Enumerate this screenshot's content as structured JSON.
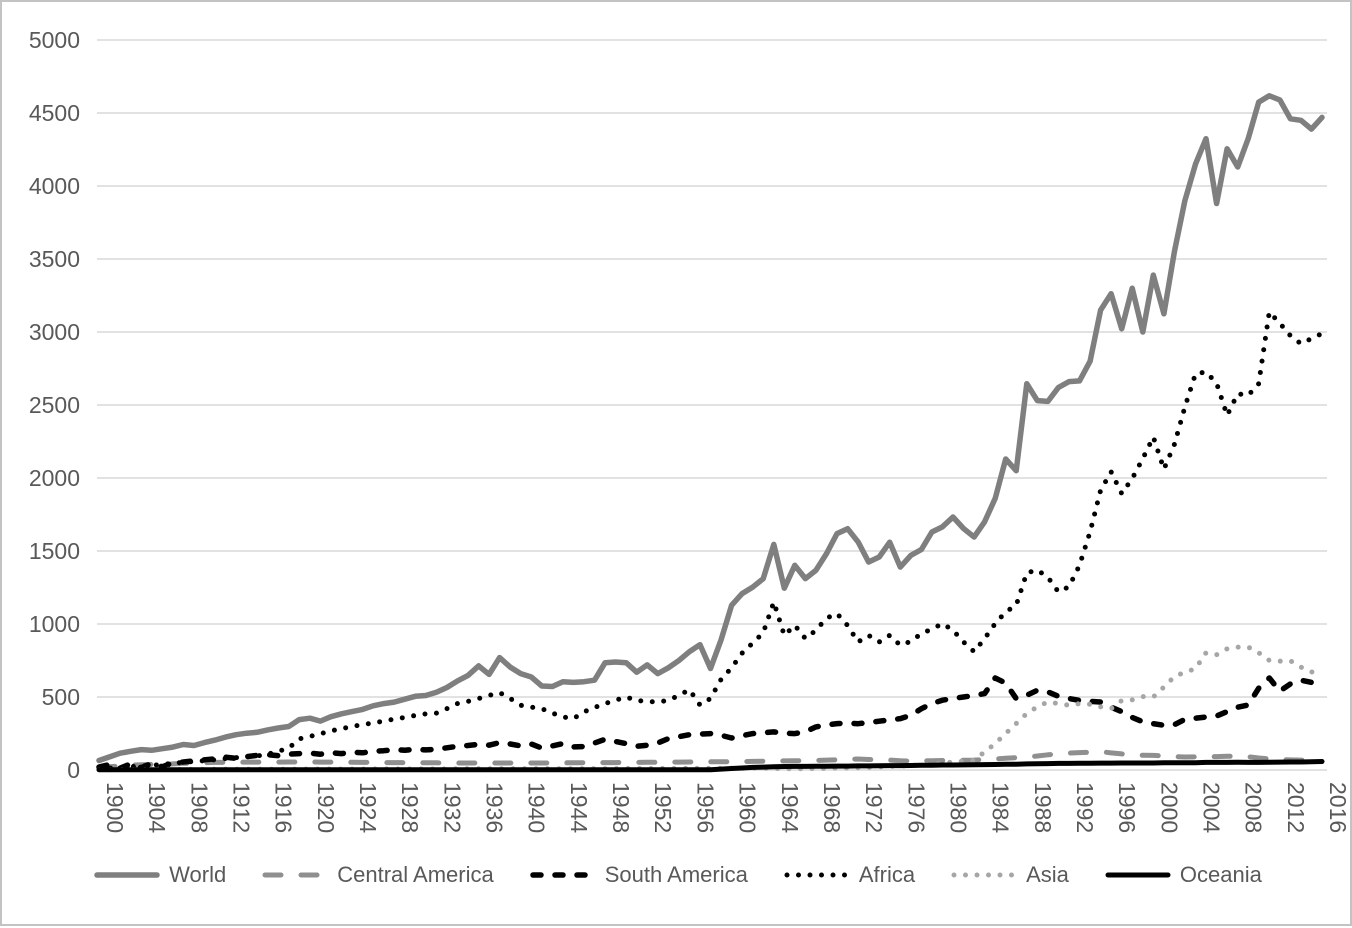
{
  "style": {
    "background": "#ffffff",
    "frame_border_color": "#c3c3c3",
    "gridline_color": "#d9d9d9",
    "axis_label_color": "#595959"
  },
  "chart_data": {
    "type": "line",
    "title": "",
    "xlabel": "",
    "ylabel": "",
    "ylim": [
      0,
      5000
    ],
    "grid": true,
    "legend_position": "bottom",
    "y_ticks": [
      0,
      500,
      1000,
      1500,
      2000,
      2500,
      3000,
      3500,
      4000,
      4500,
      5000
    ],
    "x_tick_labels": [
      "1900",
      "1904",
      "1908",
      "1912",
      "1916",
      "1920",
      "1924",
      "1928",
      "1932",
      "1936",
      "1940",
      "1944",
      "1948",
      "1952",
      "1956",
      "1960",
      "1964",
      "1968",
      "1972",
      "1976",
      "1980",
      "1984",
      "1988",
      "1992",
      "1996",
      "2000",
      "2004",
      "2008",
      "2012",
      "2016"
    ],
    "x_years": {
      "start": 1900,
      "end": 2016,
      "step": 1
    },
    "series": [
      {
        "name": "World",
        "color": "#7f7f7f",
        "dash": "solid",
        "width": 5.5,
        "values": [
          65,
          90,
          115,
          128,
          140,
          135,
          146,
          157,
          175,
          168,
          188,
          205,
          225,
          242,
          252,
          258,
          275,
          288,
          298,
          345,
          355,
          335,
          365,
          385,
          400,
          415,
          440,
          455,
          465,
          485,
          505,
          510,
          532,
          565,
          610,
          648,
          713,
          655,
          770,
          705,
          660,
          637,
          575,
          572,
          605,
          600,
          605,
          615,
          735,
          740,
          735,
          670,
          720,
          660,
          700,
          750,
          810,
          858,
          695,
          890,
          1128,
          1208,
          1253,
          1310,
          1545,
          1245,
          1402,
          1311,
          1368,
          1482,
          1619,
          1653,
          1562,
          1425,
          1459,
          1560,
          1390,
          1470,
          1510,
          1630,
          1665,
          1733,
          1654,
          1596,
          1700,
          1860,
          2130,
          2050,
          2646,
          2530,
          2525,
          2620,
          2660,
          2665,
          2800,
          3150,
          3262,
          3022,
          3300,
          3000,
          3390,
          3125,
          3550,
          3900,
          4150,
          4324,
          3880,
          4255,
          4130,
          4325,
          4575,
          4618,
          4590,
          4460,
          4450,
          4390,
          4470
        ]
      },
      {
        "name": "Central America",
        "color": "#8f8f8f",
        "dash": "long-dash",
        "width": 5,
        "values": [
          15,
          22,
          28,
          32,
          36,
          38,
          40,
          42,
          46,
          48,
          50,
          52,
          53,
          53,
          54,
          54,
          54,
          54,
          55,
          55,
          55,
          54,
          54,
          53,
          53,
          52,
          52,
          51,
          51,
          50,
          50,
          49,
          49,
          48,
          48,
          48,
          48,
          48,
          48,
          48,
          48,
          48,
          48,
          48,
          49,
          49,
          50,
          50,
          51,
          51,
          52,
          52,
          53,
          53,
          54,
          54,
          55,
          55,
          56,
          56,
          57,
          58,
          59,
          60,
          61,
          62,
          63,
          64,
          66,
          68,
          70,
          73,
          75,
          72,
          70,
          68,
          63,
          61,
          62,
          64,
          65,
          66,
          67,
          68,
          72,
          76,
          80,
          84,
          88,
          96,
          104,
          110,
          116,
          119,
          121,
          126,
          117,
          110,
          104,
          101,
          100,
          96,
          91,
          89,
          90,
          90,
          92,
          94,
          95,
          91,
          82,
          76,
          71,
          69,
          68,
          67,
          66
        ]
      },
      {
        "name": "South America",
        "color": "#000000",
        "dash": "dash",
        "width": 5.5,
        "values": [
          20,
          38,
          12,
          42,
          16,
          46,
          22,
          50,
          55,
          62,
          70,
          76,
          88,
          80,
          92,
          100,
          105,
          98,
          108,
          112,
          115,
          108,
          118,
          112,
          122,
          118,
          128,
          132,
          140,
          135,
          142,
          138,
          142,
          152,
          162,
          168,
          176,
          170,
          188,
          178,
          165,
          178,
          150,
          165,
          181,
          158,
          160,
          185,
          210,
          195,
          181,
          162,
          169,
          185,
          215,
          228,
          242,
          246,
          249,
          238,
          219,
          235,
          249,
          255,
          261,
          252,
          249,
          262,
          295,
          308,
          318,
          320,
          317,
          325,
          334,
          343,
          352,
          375,
          420,
          455,
          478,
          490,
          500,
          510,
          523,
          630,
          595,
          489,
          512,
          546,
          535,
          505,
          490,
          477,
          470,
          466,
          430,
          400,
          360,
          330,
          317,
          306,
          310,
          347,
          355,
          363,
          370,
          400,
          430,
          445,
          560,
          630,
          540,
          590,
          615,
          600,
          620
        ]
      },
      {
        "name": "Africa",
        "color": "#000000",
        "dash": "dot",
        "width": 5,
        "values": [
          8,
          12,
          18,
          22,
          28,
          32,
          38,
          45,
          52,
          58,
          64,
          70,
          78,
          84,
          90,
          96,
          108,
          128,
          150,
          213,
          230,
          248,
          268,
          283,
          298,
          310,
          322,
          335,
          348,
          360,
          373,
          384,
          390,
          420,
          455,
          470,
          489,
          510,
          530,
          490,
          443,
          430,
          420,
          390,
          363,
          352,
          398,
          428,
          455,
          478,
          500,
          475,
          470,
          465,
          477,
          510,
          550,
          445,
          490,
          620,
          700,
          800,
          870,
          940,
          1151,
          922,
          991,
          900,
          957,
          1040,
          1071,
          990,
          877,
          922,
          877,
          922,
          855,
          880,
          935,
          965,
          1003,
          957,
          877,
          810,
          900,
          1003,
          1083,
          1128,
          1350,
          1370,
          1320,
          1220,
          1255,
          1402,
          1631,
          1916,
          2042,
          1893,
          1996,
          2133,
          2281,
          2060,
          2230,
          2486,
          2714,
          2726,
          2650,
          2429,
          2577,
          2566,
          2646,
          3137,
          3060,
          2975,
          2920,
          2955,
          2990
        ]
      },
      {
        "name": "Asia",
        "color": "#a6a6a6",
        "dash": "dot",
        "width": 5,
        "values": [
          2,
          2,
          3,
          3,
          3,
          3,
          4,
          4,
          4,
          4,
          5,
          5,
          5,
          5,
          5,
          5,
          5,
          5,
          5,
          6,
          6,
          6,
          6,
          6,
          6,
          6,
          7,
          7,
          7,
          7,
          7,
          7,
          7,
          7,
          8,
          8,
          8,
          8,
          8,
          8,
          8,
          8,
          8,
          8,
          8,
          8,
          9,
          9,
          9,
          9,
          10,
          10,
          10,
          10,
          10,
          10,
          11,
          11,
          11,
          11,
          12,
          12,
          13,
          12,
          10,
          9,
          8,
          9,
          10,
          11,
          13,
          14,
          16,
          18,
          21,
          24,
          27,
          30,
          35,
          41,
          47,
          55,
          60,
          67,
          124,
          181,
          250,
          318,
          387,
          432,
          466,
          455,
          443,
          455,
          450,
          432,
          420,
          475,
          480,
          503,
          500,
          568,
          640,
          670,
          694,
          803,
          790,
          830,
          842,
          842,
          803,
          751,
          745,
          748,
          705,
          671,
          672
        ]
      },
      {
        "name": "Oceania",
        "color": "#000000",
        "dash": "solid",
        "width": 5,
        "values": [
          2,
          2,
          2,
          2,
          2,
          2,
          2,
          2,
          2,
          2,
          2,
          2,
          2,
          2,
          2,
          2,
          2,
          2,
          2,
          2,
          2,
          2,
          2,
          2,
          2,
          2,
          2,
          2,
          2,
          2,
          2,
          2,
          2,
          2,
          2,
          2,
          2,
          2,
          2,
          2,
          2,
          2,
          2,
          2,
          2,
          2,
          2,
          2,
          2,
          2,
          2,
          2,
          2,
          2,
          2,
          2,
          2,
          2,
          2,
          6,
          10,
          14,
          18,
          20,
          22,
          24,
          25,
          25,
          26,
          26,
          27,
          27,
          28,
          28,
          29,
          30,
          30,
          31,
          32,
          33,
          34,
          34,
          35,
          36,
          37,
          38,
          39,
          40,
          42,
          43,
          44,
          45,
          45,
          46,
          46,
          47,
          47,
          48,
          48,
          48,
          48,
          49,
          49,
          50,
          50,
          52,
          52,
          52,
          53,
          52,
          52,
          53,
          54,
          55,
          55,
          56,
          58
        ]
      }
    ]
  }
}
